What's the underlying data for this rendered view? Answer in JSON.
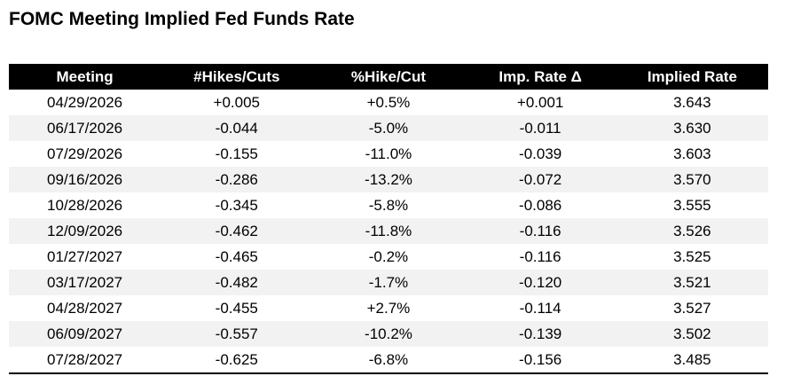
{
  "title": "FOMC Meeting Implied Fed Funds Rate",
  "colors": {
    "background": "#ffffff",
    "header_bg": "#000000",
    "header_text": "#ffffff",
    "row_bg": "#ffffff",
    "row_alt_bg": "#f2f2f2",
    "text": "#000000",
    "bottom_border": "#000000"
  },
  "chart_data": {
    "type": "table",
    "title": "FOMC Meeting Implied Fed Funds Rate",
    "columns": [
      "Meeting",
      "#Hikes/Cuts",
      "%Hike/Cut",
      "Imp. Rate Δ",
      "Implied Rate"
    ],
    "rows": [
      [
        "04/29/2026",
        "+0.005",
        "+0.5%",
        "+0.001",
        "3.643"
      ],
      [
        "06/17/2026",
        "-0.044",
        "-5.0%",
        "-0.011",
        "3.630"
      ],
      [
        "07/29/2026",
        "-0.155",
        "-11.0%",
        "-0.039",
        "3.603"
      ],
      [
        "09/16/2026",
        "-0.286",
        "-13.2%",
        "-0.072",
        "3.570"
      ],
      [
        "10/28/2026",
        "-0.345",
        "-5.8%",
        "-0.086",
        "3.555"
      ],
      [
        "12/09/2026",
        "-0.462",
        "-11.8%",
        "-0.116",
        "3.526"
      ],
      [
        "01/27/2027",
        "-0.465",
        "-0.2%",
        "-0.116",
        "3.525"
      ],
      [
        "03/17/2027",
        "-0.482",
        "-1.7%",
        "-0.120",
        "3.521"
      ],
      [
        "04/28/2027",
        "-0.455",
        "+2.7%",
        "-0.114",
        "3.527"
      ],
      [
        "06/09/2027",
        "-0.557",
        "-10.2%",
        "-0.139",
        "3.502"
      ],
      [
        "07/28/2027",
        "-0.625",
        "-6.8%",
        "-0.156",
        "3.485"
      ]
    ],
    "layout": {
      "row_striping": true,
      "header_style": "black-bar-white-text",
      "cell_alignment": "center"
    }
  }
}
